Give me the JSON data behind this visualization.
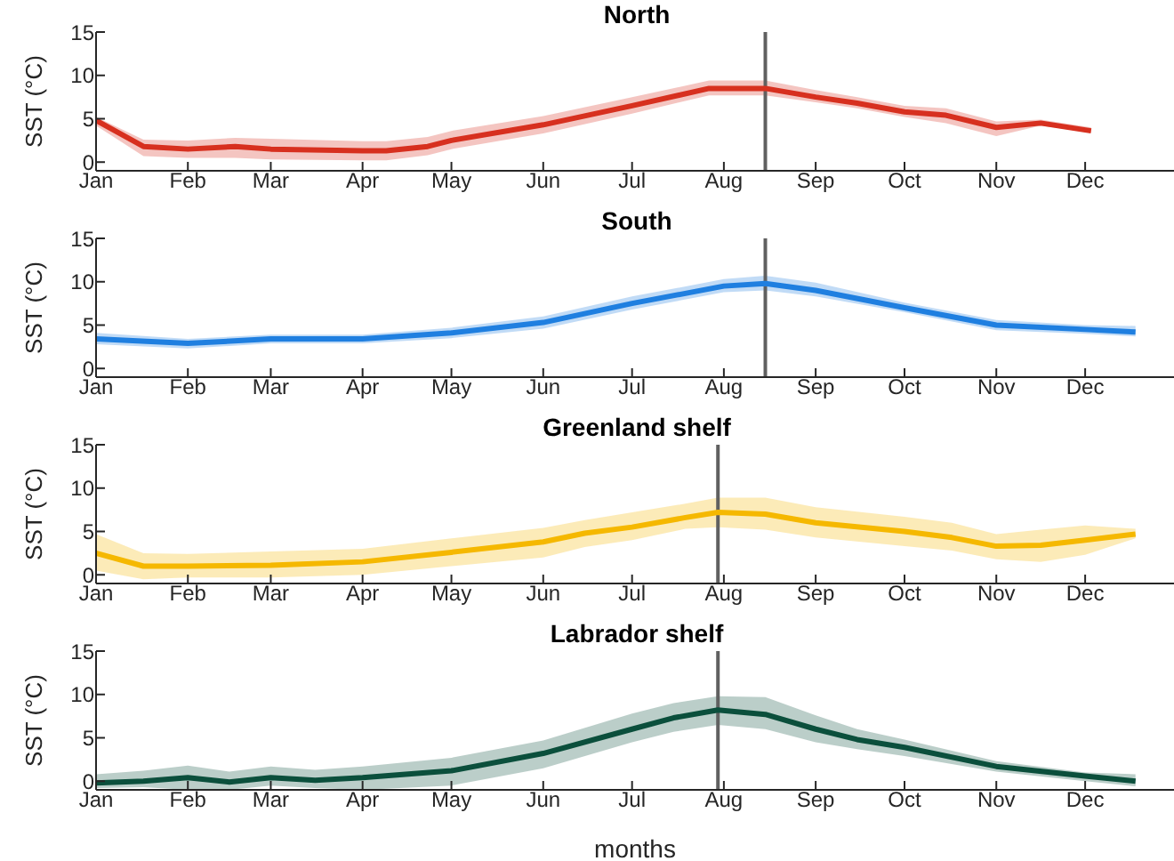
{
  "chart_data": [
    {
      "type": "line",
      "title": "North",
      "ylabel": "SST (°C)",
      "grid": false,
      "legend": false,
      "xlim": [
        "--01-01",
        "--12-31"
      ],
      "ylim": [
        -1,
        15
      ],
      "yticks": [
        0,
        5,
        10,
        15
      ],
      "xticks": [
        {
          "value": "--01-01",
          "label": "Jan"
        },
        {
          "value": "--02-01",
          "label": "Feb"
        },
        {
          "value": "--03-01",
          "label": "Mar"
        },
        {
          "value": "--04-01",
          "label": "Apr"
        },
        {
          "value": "--05-01",
          "label": "May"
        },
        {
          "value": "--06-01",
          "label": "Jun"
        },
        {
          "value": "--07-01",
          "label": "Jul"
        },
        {
          "value": "--08-01",
          "label": "Aug"
        },
        {
          "value": "--09-01",
          "label": "Sep"
        },
        {
          "value": "--10-01",
          "label": "Oct"
        },
        {
          "value": "--11-01",
          "label": "Nov"
        },
        {
          "value": "--12-01",
          "label": "Dec"
        }
      ],
      "x": [
        "--01-01",
        "--01-17",
        "--02-01",
        "--02-17",
        "--03-01",
        "--04-01",
        "--04-09",
        "--04-23",
        "--05-01",
        "--06-01",
        "--07-01",
        "--07-27",
        "--08-01",
        "--08-15",
        "--09-01",
        "--09-15",
        "--10-01",
        "--10-15",
        "--11-01",
        "--11-16",
        "--12-03"
      ],
      "series": [
        {
          "color": "#d7301f",
          "values": [
            4.8,
            1.8,
            1.5,
            1.8,
            1.5,
            1.3,
            1.3,
            1.8,
            2.5,
            4.3,
            6.5,
            8.5,
            8.5,
            8.5,
            7.5,
            6.8,
            5.8,
            5.4,
            4.0,
            4.5,
            3.6
          ],
          "lower": [
            4.2,
            0.7,
            0.5,
            0.5,
            0.3,
            0.2,
            0.2,
            0.8,
            1.5,
            3.3,
            5.6,
            7.7,
            7.7,
            7.7,
            6.9,
            6.2,
            5.2,
            4.5,
            3.0,
            4.2,
            3.4
          ],
          "upper": [
            5.2,
            2.6,
            2.5,
            2.8,
            2.7,
            2.4,
            2.4,
            2.9,
            3.6,
            5.3,
            7.5,
            9.4,
            9.4,
            9.4,
            8.3,
            7.5,
            6.5,
            6.2,
            4.7,
            4.9,
            4.0
          ]
        }
      ],
      "ref_lines": [
        {
          "axis": "x",
          "value": "--08-15",
          "color": "#606060"
        }
      ]
    },
    {
      "type": "line",
      "title": "South",
      "ylabel": "SST (°C)",
      "grid": false,
      "legend": false,
      "xlim": [
        "--01-01",
        "--12-31"
      ],
      "ylim": [
        -1,
        15
      ],
      "yticks": [
        0,
        5,
        10,
        15
      ],
      "xticks": [
        {
          "value": "--01-01",
          "label": "Jan"
        },
        {
          "value": "--02-01",
          "label": "Feb"
        },
        {
          "value": "--03-01",
          "label": "Mar"
        },
        {
          "value": "--04-01",
          "label": "Apr"
        },
        {
          "value": "--05-01",
          "label": "May"
        },
        {
          "value": "--06-01",
          "label": "Jun"
        },
        {
          "value": "--07-01",
          "label": "Jul"
        },
        {
          "value": "--08-01",
          "label": "Aug"
        },
        {
          "value": "--09-01",
          "label": "Sep"
        },
        {
          "value": "--10-01",
          "label": "Oct"
        },
        {
          "value": "--11-01",
          "label": "Nov"
        },
        {
          "value": "--12-01",
          "label": "Dec"
        }
      ],
      "x": [
        "--01-01",
        "--02-01",
        "--03-01",
        "--04-01",
        "--05-01",
        "--06-01",
        "--07-01",
        "--08-01",
        "--08-15",
        "--09-01",
        "--10-01",
        "--11-01",
        "--12-01",
        "--12-18"
      ],
      "series": [
        {
          "color": "#1f7fe0",
          "values": [
            3.4,
            2.9,
            3.4,
            3.4,
            4.1,
            5.3,
            7.5,
            9.5,
            9.8,
            9.0,
            7.0,
            5.0,
            4.5,
            4.2
          ],
          "lower": [
            2.8,
            2.3,
            2.9,
            2.9,
            3.5,
            4.6,
            6.8,
            8.8,
            9.0,
            8.3,
            6.5,
            4.4,
            4.0,
            3.7
          ],
          "upper": [
            4.1,
            3.4,
            3.9,
            3.9,
            4.7,
            6.0,
            8.3,
            10.3,
            10.7,
            9.9,
            7.6,
            5.6,
            5.0,
            4.9
          ]
        }
      ],
      "ref_lines": [
        {
          "axis": "x",
          "value": "--08-15",
          "color": "#606060"
        }
      ]
    },
    {
      "type": "line",
      "title": "Greenland shelf",
      "ylabel": "SST (°C)",
      "grid": false,
      "legend": false,
      "xlim": [
        "--01-01",
        "--12-31"
      ],
      "ylim": [
        -1,
        15
      ],
      "yticks": [
        0,
        5,
        10,
        15
      ],
      "xticks": [
        {
          "value": "--01-01",
          "label": "Jan"
        },
        {
          "value": "--02-01",
          "label": "Feb"
        },
        {
          "value": "--03-01",
          "label": "Mar"
        },
        {
          "value": "--04-01",
          "label": "Apr"
        },
        {
          "value": "--05-01",
          "label": "May"
        },
        {
          "value": "--06-01",
          "label": "Jun"
        },
        {
          "value": "--07-01",
          "label": "Jul"
        },
        {
          "value": "--08-01",
          "label": "Aug"
        },
        {
          "value": "--09-01",
          "label": "Sep"
        },
        {
          "value": "--10-01",
          "label": "Oct"
        },
        {
          "value": "--11-01",
          "label": "Nov"
        },
        {
          "value": "--12-01",
          "label": "Dec"
        }
      ],
      "x": [
        "--01-01",
        "--01-17",
        "--02-01",
        "--03-01",
        "--04-01",
        "--05-01",
        "--06-01",
        "--06-15",
        "--07-01",
        "--07-19",
        "--07-30",
        "--08-15",
        "--09-01",
        "--10-01",
        "--10-17",
        "--11-01",
        "--11-16",
        "--12-01",
        "--12-18"
      ],
      "series": [
        {
          "color": "#f5b800",
          "values": [
            2.5,
            1.0,
            1.0,
            1.1,
            1.5,
            2.6,
            3.8,
            4.8,
            5.5,
            6.6,
            7.2,
            7.0,
            6.0,
            5.0,
            4.3,
            3.3,
            3.4,
            4.0,
            4.7
          ],
          "lower": [
            0.5,
            -0.5,
            -0.3,
            -0.3,
            0,
            1.0,
            2.0,
            3.2,
            4.0,
            5.3,
            5.5,
            5.2,
            4.3,
            3.3,
            2.8,
            1.8,
            1.5,
            2.3,
            4.2
          ],
          "upper": [
            4.7,
            2.5,
            2.4,
            2.7,
            3.0,
            4.2,
            5.4,
            6.3,
            7.2,
            8.2,
            8.9,
            8.9,
            7.8,
            6.7,
            6.0,
            4.7,
            5.2,
            5.7,
            5.3
          ]
        }
      ],
      "ref_lines": [
        {
          "axis": "x",
          "value": "--07-30",
          "color": "#606060"
        }
      ]
    },
    {
      "type": "line",
      "title": "Labrador shelf",
      "ylabel": "SST (°C)",
      "xlabel": "months",
      "grid": false,
      "legend": false,
      "xlim": [
        "--01-01",
        "--12-31"
      ],
      "ylim": [
        -1,
        15
      ],
      "yticks": [
        0,
        5,
        10,
        15
      ],
      "xticks": [
        {
          "value": "--01-01",
          "label": "Jan"
        },
        {
          "value": "--02-01",
          "label": "Feb"
        },
        {
          "value": "--03-01",
          "label": "Mar"
        },
        {
          "value": "--04-01",
          "label": "Apr"
        },
        {
          "value": "--05-01",
          "label": "May"
        },
        {
          "value": "--06-01",
          "label": "Jun"
        },
        {
          "value": "--07-01",
          "label": "Jul"
        },
        {
          "value": "--08-01",
          "label": "Aug"
        },
        {
          "value": "--09-01",
          "label": "Sep"
        },
        {
          "value": "--10-01",
          "label": "Oct"
        },
        {
          "value": "--11-01",
          "label": "Nov"
        },
        {
          "value": "--12-01",
          "label": "Dec"
        }
      ],
      "x": [
        "--01-01",
        "--01-17",
        "--02-01",
        "--02-15",
        "--03-01",
        "--03-16",
        "--04-01",
        "--05-01",
        "--06-01",
        "--07-01",
        "--07-15",
        "--07-30",
        "--08-15",
        "--09-01",
        "--09-15",
        "--10-01",
        "--11-01",
        "--12-01",
        "--12-18"
      ],
      "series": [
        {
          "color": "#0b4f3c",
          "values": [
            -0.2,
            0,
            0.4,
            -0.1,
            0.4,
            0.1,
            0.4,
            1.2,
            3.2,
            6.0,
            7.3,
            8.2,
            7.7,
            6.0,
            4.8,
            3.9,
            1.7,
            0.6,
            0.0
          ],
          "lower": [
            -0.8,
            -0.7,
            -1,
            -1,
            -0.5,
            -0.8,
            -1,
            -0.5,
            1.5,
            4.5,
            5.7,
            6.5,
            6.0,
            4.5,
            3.7,
            2.9,
            1.1,
            0,
            -0.6
          ],
          "upper": [
            0.8,
            1.2,
            1.8,
            1.1,
            1.7,
            1.3,
            1.7,
            2.7,
            4.7,
            7.8,
            9.0,
            9.8,
            9.7,
            7.6,
            6.0,
            4.8,
            2.3,
            1.0,
            0.8
          ]
        }
      ],
      "ref_lines": [
        {
          "axis": "x",
          "value": "--07-30",
          "color": "#606060"
        }
      ]
    }
  ]
}
